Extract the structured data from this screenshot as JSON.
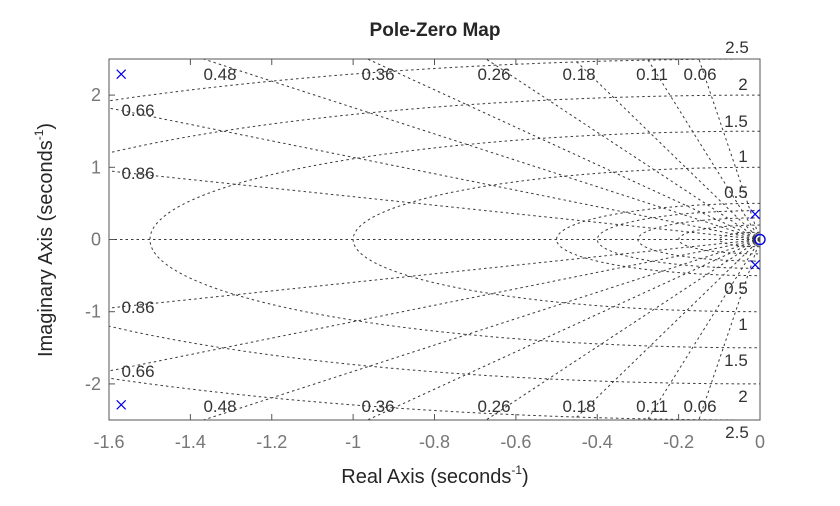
{
  "chart_data": {
    "type": "scatter",
    "title": "Pole-Zero Map",
    "xlabel": "Real Axis (seconds^-1)",
    "ylabel": "Imaginary Axis (seconds^-1)",
    "xlabel_text": "Real  Axis  (seconds",
    "ylabel_text": "Imaginary  Axis  (seconds",
    "label_exponent": "-1",
    "xlim": [
      -1.6,
      0
    ],
    "ylim": [
      -2.5,
      2.5
    ],
    "xticks": [
      -1.6,
      -1.4,
      -1.2,
      -1,
      -0.8,
      -0.6,
      -0.4,
      -0.2,
      0
    ],
    "xtick_labels": [
      "-1.6",
      "-1.4",
      "-1.2",
      "-1",
      "-0.8",
      "-0.6",
      "-0.4",
      "-0.2",
      "0"
    ],
    "yticks": [
      2,
      1,
      0,
      -1,
      -2
    ],
    "ytick_labels": [
      "2",
      "1",
      "0",
      "-1",
      "-2"
    ],
    "grid": true,
    "grid_type": "s-plane damping/natural-frequency grid",
    "damping_ratio_labels": [
      "0.48",
      "0.36",
      "0.26",
      "0.18",
      "0.11",
      "0.06",
      "0.66",
      "0.86"
    ],
    "damping_ratios": [
      0.06,
      0.11,
      0.18,
      0.26,
      0.36,
      0.48,
      0.66,
      0.86
    ],
    "natural_frequency_labels": [
      "0.5",
      "1",
      "1.5",
      "2",
      "2.5"
    ],
    "natural_frequencies": [
      0.5,
      1,
      1.5,
      2,
      2.5
    ],
    "series": [
      {
        "name": "poles",
        "marker": "x",
        "color": "#0000ee",
        "points": [
          [
            -1.57,
            2.29
          ],
          [
            -1.57,
            -2.29
          ],
          [
            -0.012,
            0.35
          ],
          [
            -0.012,
            -0.35
          ]
        ]
      },
      {
        "name": "zeros",
        "marker": "o",
        "color": "#0000ee",
        "points": [
          [
            0,
            0
          ]
        ]
      }
    ]
  }
}
